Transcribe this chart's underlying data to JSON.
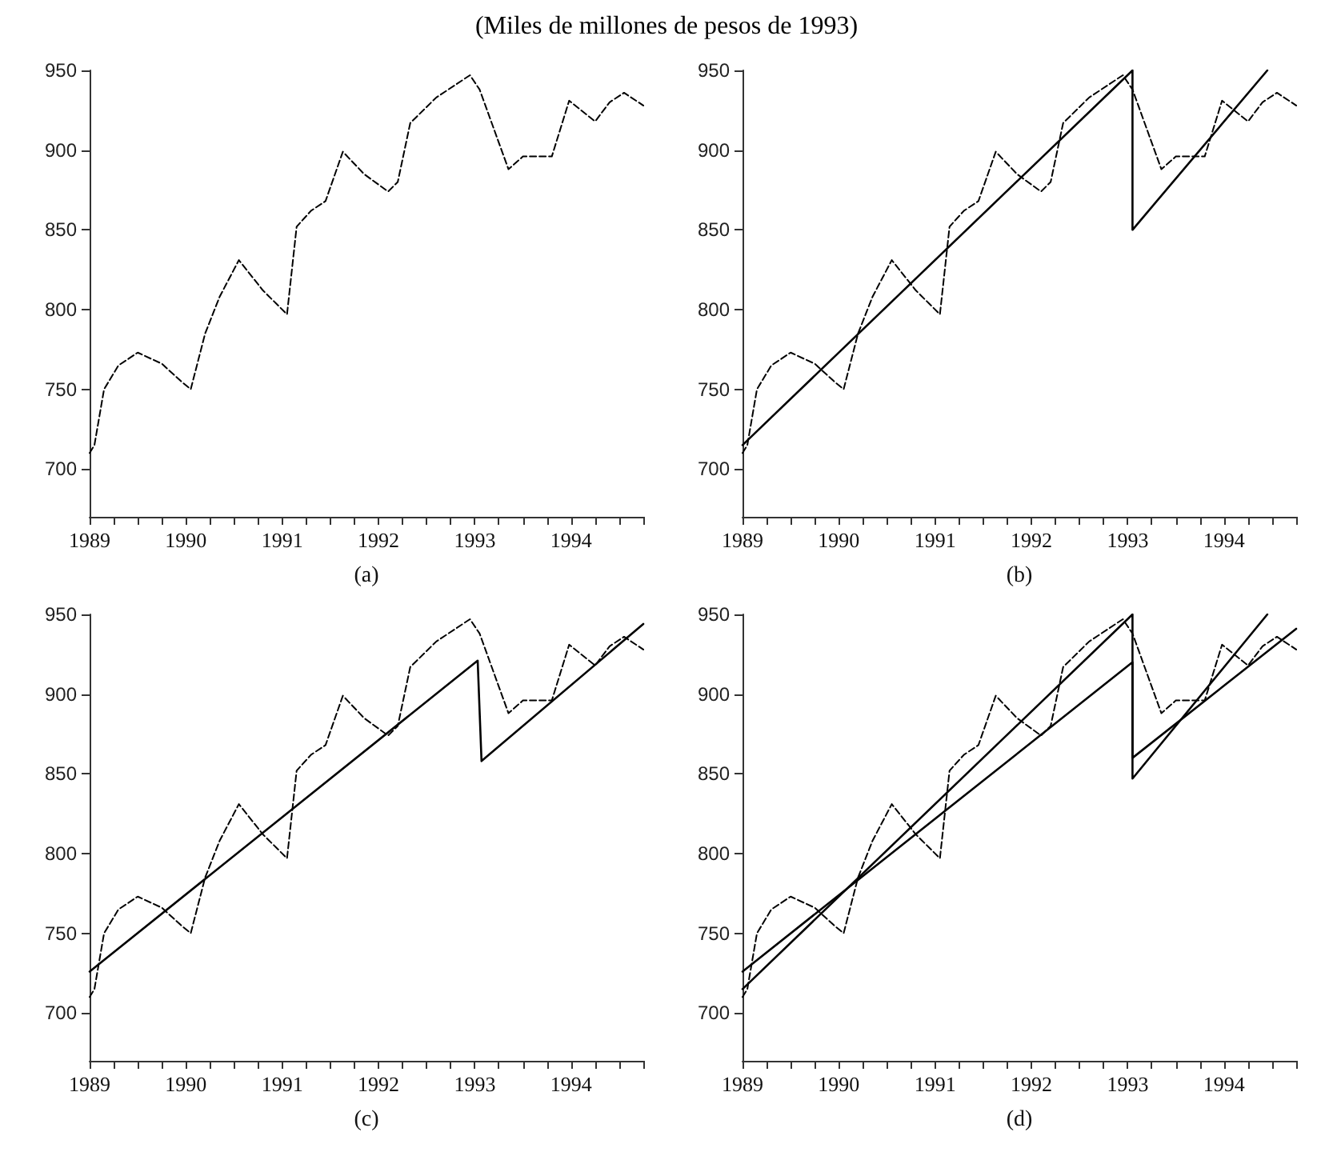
{
  "chart_data": [
    {
      "type": "line",
      "title": "(Miles de millones de pesos de 1993)",
      "xlabel": "(a)",
      "xlim": [
        1989,
        1994.75
      ],
      "ylim": [
        670,
        950
      ],
      "yticks": [
        700,
        750,
        800,
        850,
        900,
        950
      ],
      "xticks": [
        1989,
        {
          "value": 1989.25,
          "label": null
        },
        {
          "value": 1989.5,
          "label": null
        },
        {
          "value": 1989.75,
          "label": null
        },
        1990,
        {
          "value": 1990.25,
          "label": null
        },
        {
          "value": 1990.5,
          "label": null
        },
        {
          "value": 1990.75,
          "label": null
        },
        1991,
        {
          "value": 1991.25,
          "label": null
        },
        {
          "value": 1991.5,
          "label": null
        },
        {
          "value": 1991.75,
          "label": null
        },
        1992,
        {
          "value": 1992.25,
          "label": null
        },
        {
          "value": 1992.5,
          "label": null
        },
        {
          "value": 1992.75,
          "label": null
        },
        1993,
        {
          "value": 1993.25,
          "label": null
        },
        {
          "value": 1993.5,
          "label": null
        },
        {
          "value": 1993.75,
          "label": null
        },
        1994,
        {
          "value": 1994.25,
          "label": null
        },
        {
          "value": 1994.5,
          "label": null
        },
        {
          "value": 1994.75,
          "label": null
        }
      ],
      "grid": false,
      "marker": "none",
      "series": [
        {
          "color": "#000000",
          "line_style": "dashed",
          "x": [
            1989.0,
            1989.05,
            1989.15,
            1989.3,
            1989.5,
            1989.75,
            1989.95,
            1990.05,
            1990.2,
            1990.35,
            1990.55,
            1990.8,
            1991.05,
            1991.15,
            1991.3,
            1991.45,
            1991.63,
            1991.85,
            1992.1,
            1992.2,
            1992.33,
            1992.6,
            1992.95,
            1993.05,
            1993.35,
            1993.5,
            1993.8,
            1993.98,
            1994.25,
            1994.4,
            1994.55,
            1994.75
          ],
          "values": [
            710,
            715,
            750,
            765,
            773,
            766,
            755,
            750,
            785,
            808,
            831,
            812,
            797,
            852,
            862,
            868,
            899,
            885,
            874,
            880,
            917,
            933,
            947,
            938,
            888,
            896,
            896,
            931,
            918,
            930,
            936,
            928
          ]
        }
      ]
    },
    {
      "type": "line",
      "xlabel": "(b)",
      "xlim": [
        1989,
        1994.75
      ],
      "ylim": [
        670,
        950
      ],
      "yticks": [
        700,
        750,
        800,
        850,
        900,
        950
      ],
      "xticks": [
        1989,
        {
          "value": 1989.25,
          "label": null
        },
        {
          "value": 1989.5,
          "label": null
        },
        {
          "value": 1989.75,
          "label": null
        },
        1990,
        {
          "value": 1990.25,
          "label": null
        },
        {
          "value": 1990.5,
          "label": null
        },
        {
          "value": 1990.75,
          "label": null
        },
        1991,
        {
          "value": 1991.25,
          "label": null
        },
        {
          "value": 1991.5,
          "label": null
        },
        {
          "value": 1991.75,
          "label": null
        },
        1992,
        {
          "value": 1992.25,
          "label": null
        },
        {
          "value": 1992.5,
          "label": null
        },
        {
          "value": 1992.75,
          "label": null
        },
        1993,
        {
          "value": 1993.25,
          "label": null
        },
        {
          "value": 1993.5,
          "label": null
        },
        {
          "value": 1993.75,
          "label": null
        },
        1994,
        {
          "value": 1994.25,
          "label": null
        },
        {
          "value": 1994.5,
          "label": null
        },
        {
          "value": 1994.75,
          "label": null
        }
      ],
      "grid": false,
      "marker": "none",
      "series": [
        {
          "color": "#000000",
          "line_style": "dashed",
          "x": [
            1989.0,
            1989.05,
            1989.15,
            1989.3,
            1989.5,
            1989.75,
            1989.95,
            1990.05,
            1990.2,
            1990.35,
            1990.55,
            1990.8,
            1991.05,
            1991.15,
            1991.3,
            1991.45,
            1991.63,
            1991.85,
            1992.1,
            1992.2,
            1992.33,
            1992.6,
            1992.95,
            1993.05,
            1993.35,
            1993.5,
            1993.8,
            1993.98,
            1994.25,
            1994.4,
            1994.55,
            1994.75
          ],
          "values": [
            710,
            715,
            750,
            765,
            773,
            766,
            755,
            750,
            785,
            808,
            831,
            812,
            797,
            852,
            862,
            868,
            899,
            885,
            874,
            880,
            917,
            933,
            947,
            938,
            888,
            896,
            896,
            931,
            918,
            930,
            936,
            928
          ]
        },
        {
          "color": "#000000",
          "line_style": "solid",
          "x": [
            1989,
            1993.05,
            1993.05,
            1994.45
          ],
          "values": [
            715,
            950,
            850,
            950
          ]
        }
      ]
    },
    {
      "type": "line",
      "xlabel": "(c)",
      "xlim": [
        1989,
        1994.75
      ],
      "ylim": [
        670,
        950
      ],
      "yticks": [
        700,
        750,
        800,
        850,
        900,
        950
      ],
      "xticks": [
        1989,
        {
          "value": 1989.25,
          "label": null
        },
        {
          "value": 1989.5,
          "label": null
        },
        {
          "value": 1989.75,
          "label": null
        },
        1990,
        {
          "value": 1990.25,
          "label": null
        },
        {
          "value": 1990.5,
          "label": null
        },
        {
          "value": 1990.75,
          "label": null
        },
        1991,
        {
          "value": 1991.25,
          "label": null
        },
        {
          "value": 1991.5,
          "label": null
        },
        {
          "value": 1991.75,
          "label": null
        },
        1992,
        {
          "value": 1992.25,
          "label": null
        },
        {
          "value": 1992.5,
          "label": null
        },
        {
          "value": 1992.75,
          "label": null
        },
        1993,
        {
          "value": 1993.25,
          "label": null
        },
        {
          "value": 1993.5,
          "label": null
        },
        {
          "value": 1993.75,
          "label": null
        },
        1994,
        {
          "value": 1994.25,
          "label": null
        },
        {
          "value": 1994.5,
          "label": null
        },
        {
          "value": 1994.75,
          "label": null
        }
      ],
      "grid": false,
      "marker": "none",
      "series": [
        {
          "color": "#000000",
          "line_style": "dashed",
          "x": [
            1989.0,
            1989.05,
            1989.15,
            1989.3,
            1989.5,
            1989.75,
            1989.95,
            1990.05,
            1990.2,
            1990.35,
            1990.55,
            1990.8,
            1991.05,
            1991.15,
            1991.3,
            1991.45,
            1991.63,
            1991.85,
            1992.1,
            1992.2,
            1992.33,
            1992.6,
            1992.95,
            1993.05,
            1993.35,
            1993.5,
            1993.8,
            1993.98,
            1994.25,
            1994.4,
            1994.55,
            1994.75
          ],
          "values": [
            710,
            715,
            750,
            765,
            773,
            766,
            755,
            750,
            785,
            808,
            831,
            812,
            797,
            852,
            862,
            868,
            899,
            885,
            874,
            880,
            917,
            933,
            947,
            938,
            888,
            896,
            896,
            931,
            918,
            930,
            936,
            928
          ]
        },
        {
          "color": "#000000",
          "line_style": "solid",
          "x": [
            1989,
            1993.03,
            1993.07,
            1994.75
          ],
          "values": [
            726,
            921,
            858,
            944
          ]
        }
      ]
    },
    {
      "type": "line",
      "xlabel": "(d)",
      "xlim": [
        1989,
        1994.75
      ],
      "ylim": [
        670,
        950
      ],
      "yticks": [
        700,
        750,
        800,
        850,
        900,
        950
      ],
      "xticks": [
        1989,
        {
          "value": 1989.25,
          "label": null
        },
        {
          "value": 1989.5,
          "label": null
        },
        {
          "value": 1989.75,
          "label": null
        },
        1990,
        {
          "value": 1990.25,
          "label": null
        },
        {
          "value": 1990.5,
          "label": null
        },
        {
          "value": 1990.75,
          "label": null
        },
        1991,
        {
          "value": 1991.25,
          "label": null
        },
        {
          "value": 1991.5,
          "label": null
        },
        {
          "value": 1991.75,
          "label": null
        },
        1992,
        {
          "value": 1992.25,
          "label": null
        },
        {
          "value": 1992.5,
          "label": null
        },
        {
          "value": 1992.75,
          "label": null
        },
        1993,
        {
          "value": 1993.25,
          "label": null
        },
        {
          "value": 1993.5,
          "label": null
        },
        {
          "value": 1993.75,
          "label": null
        },
        1994,
        {
          "value": 1994.25,
          "label": null
        },
        {
          "value": 1994.5,
          "label": null
        },
        {
          "value": 1994.75,
          "label": null
        }
      ],
      "grid": false,
      "marker": "none",
      "series": [
        {
          "color": "#000000",
          "line_style": "dashed",
          "x": [
            1989.0,
            1989.05,
            1989.15,
            1989.3,
            1989.5,
            1989.75,
            1989.95,
            1990.05,
            1990.2,
            1990.35,
            1990.55,
            1990.8,
            1991.05,
            1991.15,
            1991.3,
            1991.45,
            1991.63,
            1991.85,
            1992.1,
            1992.2,
            1992.33,
            1992.6,
            1992.95,
            1993.05,
            1993.35,
            1993.5,
            1993.8,
            1993.98,
            1994.25,
            1994.4,
            1994.55,
            1994.75
          ],
          "values": [
            710,
            715,
            750,
            765,
            773,
            766,
            755,
            750,
            785,
            808,
            831,
            812,
            797,
            852,
            862,
            868,
            899,
            885,
            874,
            880,
            917,
            933,
            947,
            938,
            888,
            896,
            896,
            931,
            918,
            930,
            936,
            928
          ]
        },
        {
          "color": "#000000",
          "line_style": "solid",
          "x": [
            1989,
            1993.05,
            1993.05,
            1994.75
          ],
          "values": [
            726,
            920,
            860,
            941
          ]
        },
        {
          "color": "#000000",
          "line_style": "solid",
          "x": [
            1989,
            1993.05,
            1993.05,
            1994.45
          ],
          "values": [
            715,
            950,
            847,
            950
          ]
        }
      ]
    }
  ]
}
